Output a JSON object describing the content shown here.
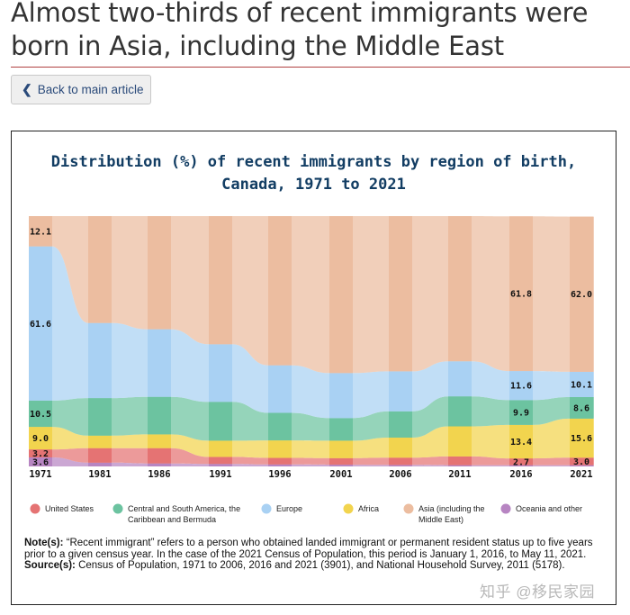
{
  "headline": "Almost two-thirds of recent immigrants were born in Asia, including the Middle East",
  "back_button": {
    "label": "Back to main article"
  },
  "chart_data": {
    "type": "area",
    "title_lines": [
      "Distribution (%) of recent immigrants by region of birth,",
      "Canada, 1971 to 2021"
    ],
    "categories": [
      "1971",
      "1981",
      "1986",
      "1991",
      "1996",
      "2001",
      "2006",
      "2011",
      "2016",
      "2021"
    ],
    "ylim": [
      0,
      100
    ],
    "series": [
      {
        "name": "Oceania and other",
        "legend_label": "Oceania and other",
        "color": "#b785c2",
        "values": [
          3.6,
          1.5,
          1.2,
          1.0,
          0.8,
          0.7,
          0.6,
          0.5,
          0.5,
          0.5
        ]
      },
      {
        "name": "United States",
        "legend_label": "United States",
        "color": "#e57373",
        "values": [
          3.2,
          5.8,
          6.1,
          2.8,
          2.6,
          2.6,
          2.9,
          3.5,
          2.7,
          3.0
        ]
      },
      {
        "name": "Africa",
        "legend_label": "Africa",
        "color": "#f2d44e",
        "values": [
          9.0,
          5.0,
          5.5,
          6.5,
          7.0,
          7.0,
          8.0,
          12.0,
          13.4,
          15.6
        ]
      },
      {
        "name": "Central and South America, the Caribbean and Bermuda",
        "legend_label": "Central and South America, the Caribbean and Bermuda",
        "color": "#6cc3a0",
        "values": [
          10.5,
          15.0,
          15.0,
          15.5,
          11.0,
          9.0,
          10.5,
          12.0,
          9.9,
          8.6
        ]
      },
      {
        "name": "Europe",
        "legend_label": "Europe",
        "color": "#a9d1f3",
        "values": [
          61.6,
          30.0,
          27.0,
          23.0,
          19.0,
          18.0,
          16.0,
          14.0,
          11.6,
          10.1
        ]
      },
      {
        "name": "Asia (including the Middle East)",
        "legend_label": "Asia (including the Middle East)",
        "color": "#ecbda0",
        "values": [
          12.1,
          42.7,
          45.2,
          51.2,
          59.6,
          62.7,
          62.0,
          58.0,
          61.8,
          62.0
        ]
      }
    ],
    "data_labels": [
      {
        "series": "Europe",
        "year": "1971",
        "text": "61.6"
      },
      {
        "series": "Asia (including the Middle East)",
        "year": "1971",
        "text": "12.1"
      },
      {
        "series": "Central and South America, the Caribbean and Bermuda",
        "year": "1971",
        "text": "10.5"
      },
      {
        "series": "Africa",
        "year": "1971",
        "text": "9.0"
      },
      {
        "series": "Oceania and other",
        "year": "1971",
        "text": "3.6"
      },
      {
        "series": "United States",
        "year": "1971",
        "text": "3.2"
      },
      {
        "series": "Asia (including the Middle East)",
        "year": "2016",
        "text": "61.8"
      },
      {
        "series": "Africa",
        "year": "2016",
        "text": "13.4"
      },
      {
        "series": "Europe",
        "year": "2016",
        "text": "11.6"
      },
      {
        "series": "Central and South America, the Caribbean and Bermuda",
        "year": "2016",
        "text": "9.9"
      },
      {
        "series": "United States",
        "year": "2016",
        "text": "2.7"
      },
      {
        "series": "Asia (including the Middle East)",
        "year": "2021",
        "text": "62.0"
      },
      {
        "series": "Africa",
        "year": "2021",
        "text": "15.6"
      },
      {
        "series": "Europe",
        "year": "2021",
        "text": "10.1"
      },
      {
        "series": "Central and South America, the Caribbean and Bermuda",
        "year": "2021",
        "text": "8.6"
      },
      {
        "series": "United States",
        "year": "2021",
        "text": "3.0"
      }
    ],
    "legend": [
      {
        "text": "United States",
        "color": "#e57373"
      },
      {
        "text": "Central and South America, the",
        "text2": "Caribbean and Bermuda",
        "color": "#6cc3a0"
      },
      {
        "text": "Europe",
        "color": "#a9d1f3"
      },
      {
        "text": "Africa",
        "color": "#f2d44e"
      },
      {
        "text": "Asia (including the",
        "text2": "Middle East)",
        "color": "#ecbda0"
      },
      {
        "text": "Oceania and other",
        "color": "#b785c2"
      }
    ],
    "legend_position": "bottom"
  },
  "notes": {
    "note_label": "Note(s):",
    "note_text": " “Recent immigrant” refers to a person who obtained landed immigrant or permanent resident status up to five years prior to a given census year. In the case of the 2021 Census of Population, this period is January 1, 2016, to May 11, 2021.",
    "source_label": "Source(s):",
    "source_text": " Census of Population, 1971 to 2006, 2016 and 2021 (3901), and National Household Survey, 2011 (5178)."
  },
  "watermark": "知乎 @移民家园"
}
